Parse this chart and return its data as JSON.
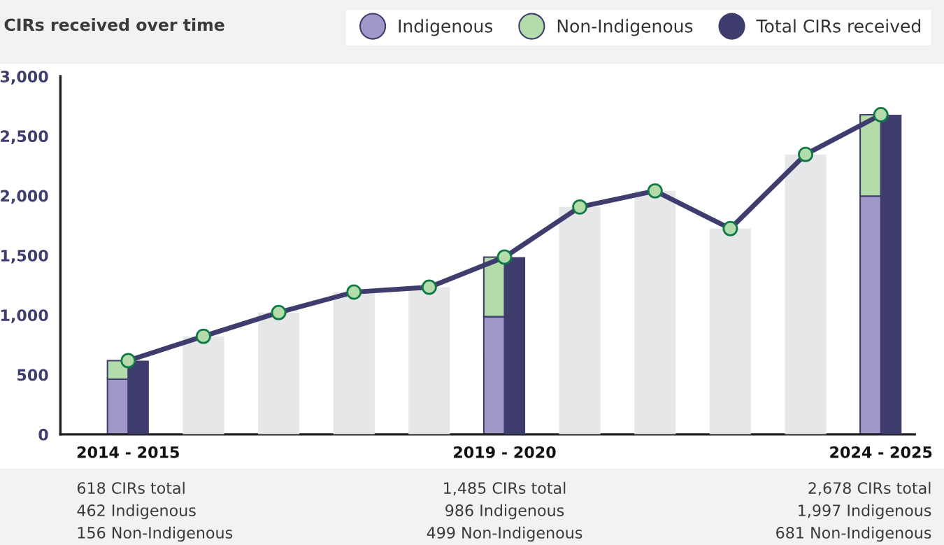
{
  "chart_data": [
    {
      "type": "bar",
      "title": "CIRs received over time",
      "categories": [
        "2014 - 2015",
        null,
        null,
        null,
        null,
        "2019 - 2020",
        null,
        null,
        null,
        null,
        "2024 - 2025"
      ],
      "stacked": true,
      "series": [
        {
          "name": "Indigenous",
          "color": "#9f98c9",
          "values": [
            462,
            null,
            null,
            null,
            null,
            986,
            null,
            null,
            null,
            null,
            1997
          ]
        },
        {
          "name": "Non-Indigenous",
          "color": "#b4dcab",
          "values": [
            156,
            null,
            null,
            null,
            null,
            499,
            null,
            null,
            null,
            null,
            681
          ]
        }
      ],
      "ylim": [
        0,
        3000
      ],
      "yticks": [
        0,
        {
          "value": 500,
          "label": "500"
        },
        {
          "value": 1000,
          "label": "1,000"
        },
        {
          "value": 1500,
          "label": "1,500"
        },
        {
          "value": 2000,
          "label": "2,000"
        },
        {
          "value": 2500,
          "label": "2,500"
        },
        {
          "value": 3000,
          "label": "3,000"
        }
      ],
      "legend": "top right",
      "annotations": [
        "618 CIRs total",
        "462 Indigenous",
        "156 Non-Indigenous",
        "1,485 CIRs total",
        "986 Indigenous",
        "499 Non-Indigenous",
        "2,678 CIRs total",
        "1,997 Indigenous",
        "681 Non-Indigenous"
      ]
    },
    {
      "type": "bar",
      "categories": [
        null,
        null,
        null,
        null,
        null,
        null,
        null,
        null,
        null,
        null,
        null
      ],
      "series": [
        {
          "name": "Total CIRs received",
          "color": "#3f3d6e",
          "values": [
            618,
            null,
            null,
            null,
            null,
            1485,
            null,
            null,
            null,
            null,
            2678
          ]
        },
        {
          "color": "#e6e7e9",
          "values": [
            null,
            822,
            1021,
            1192,
            1233,
            null,
            1905,
            2040,
            1724,
            2346,
            null
          ]
        },
        {
          "type": "line",
          "color": "#3f3d6e",
          "colors": [
            "#b4dcab",
            "#b4dcab",
            "#b4dcab",
            "#b4dcab",
            "#b4dcab",
            "#b4dcab",
            "#b4dcab",
            "#b4dcab",
            "#b4dcab",
            "#b4dcab",
            "#b4dcab"
          ],
          "values": [
            618,
            822,
            1021,
            1192,
            1233,
            1485,
            1905,
            2040,
            1724,
            2346,
            2678
          ]
        }
      ],
      "marker": "circle",
      "ylim": [
        0,
        3000
      ]
    }
  ]
}
